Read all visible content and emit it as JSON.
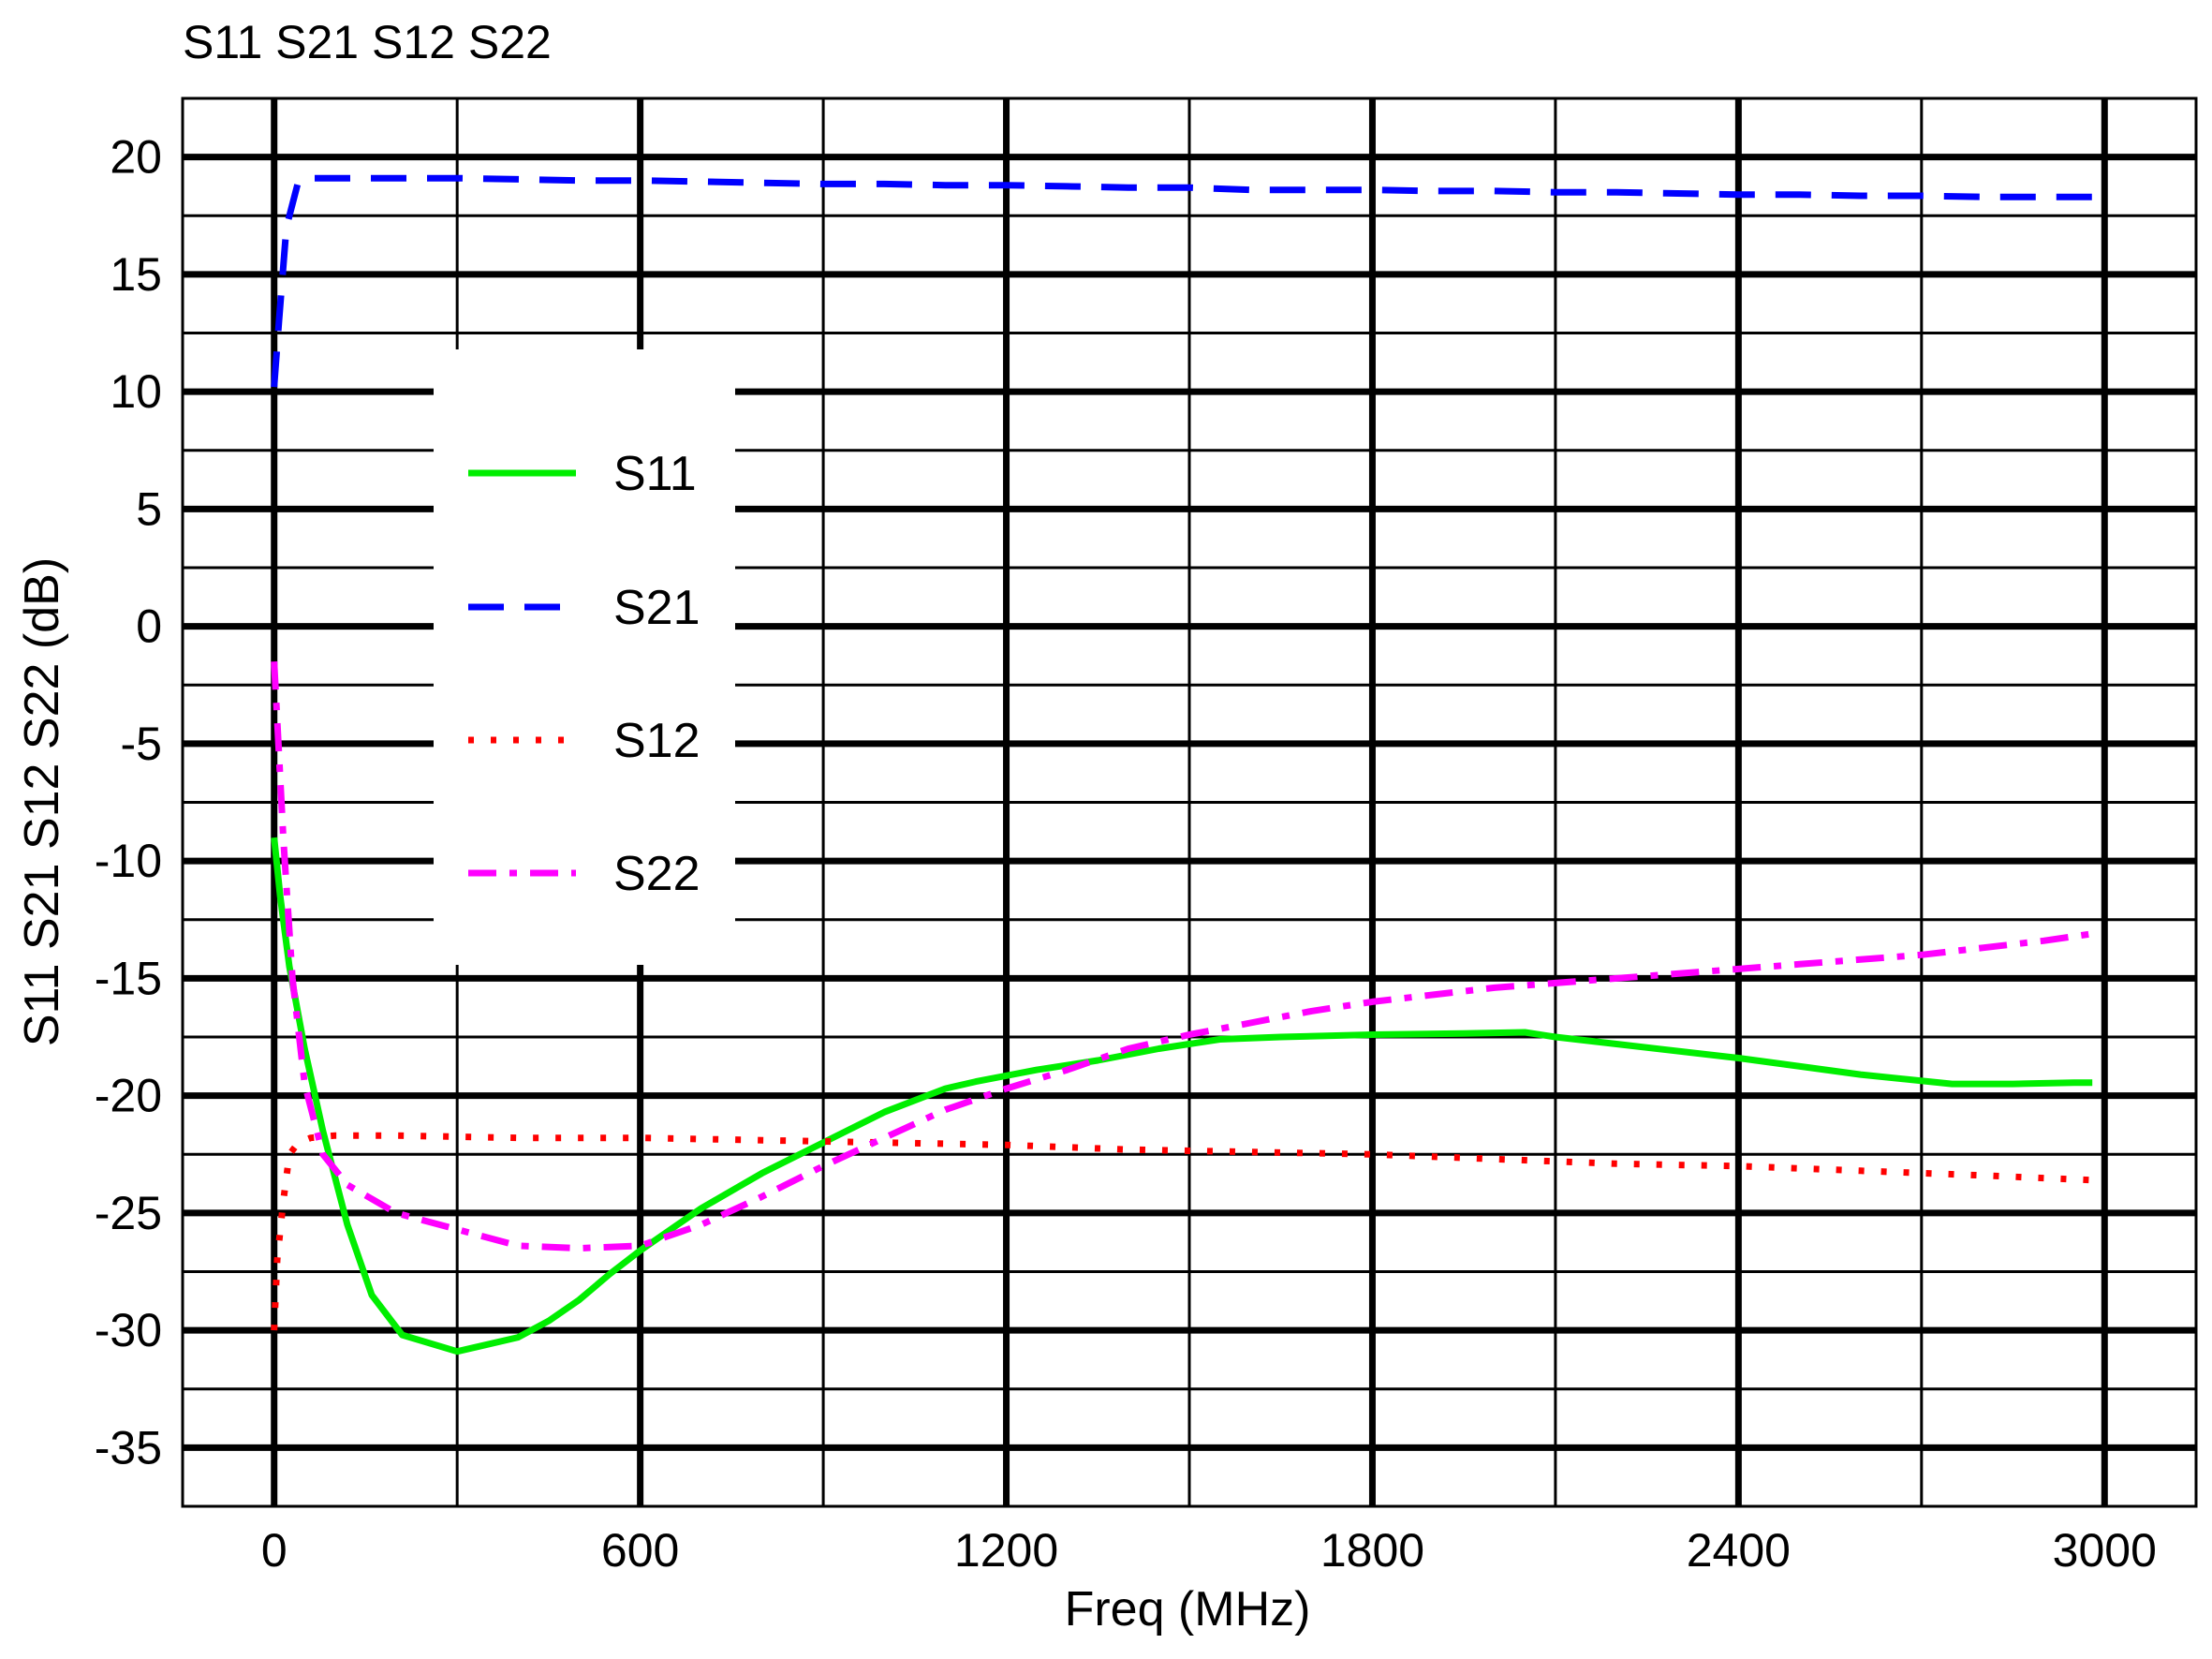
{
  "chart_data": {
    "type": "line",
    "title": "S11 S21 S12 S22",
    "xlabel": "Freq (MHz)",
    "ylabel": "S11 S21 S12 S22  (dB)",
    "xlim": [
      -150,
      3150
    ],
    "ylim": [
      -37.5,
      22.5
    ],
    "xticks": [
      0,
      600,
      1200,
      1800,
      2400,
      3000
    ],
    "xtick_labels": [
      "0",
      "600",
      "1200",
      "1800",
      "2400",
      "3000"
    ],
    "yticks": [
      20,
      15,
      10,
      5,
      0,
      -5,
      -10,
      -15,
      -20,
      -25,
      -30,
      -35
    ],
    "ytick_labels": [
      "20",
      "15",
      "10",
      "5",
      "0",
      "-5",
      "-10",
      "-15",
      "-20",
      "-25",
      "-30",
      "-35"
    ],
    "grid": true,
    "legend_position": "upper-left",
    "series": [
      {
        "name": "S11",
        "color": "#00ee00",
        "style": "solid",
        "x": [
          0,
          10,
          25,
          50,
          80,
          120,
          160,
          210,
          300,
          400,
          450,
          500,
          550,
          600,
          700,
          800,
          900,
          1000,
          1100,
          1150,
          1250,
          1350,
          1450,
          1550,
          1650,
          1800,
          1950,
          2050,
          2100,
          2200,
          2400,
          2600,
          2750,
          2850,
          2950,
          2980
        ],
        "y": [
          -9.0,
          -11.5,
          -14.5,
          -18.0,
          -21.5,
          -25.5,
          -28.5,
          -30.2,
          -30.9,
          -30.3,
          -29.6,
          -28.7,
          -27.6,
          -26.6,
          -24.8,
          -23.3,
          -22.0,
          -20.7,
          -19.7,
          -19.4,
          -18.9,
          -18.5,
          -18.0,
          -17.6,
          -17.5,
          -17.4,
          -17.35,
          -17.3,
          -17.5,
          -17.8,
          -18.4,
          -19.1,
          -19.5,
          -19.5,
          -19.45,
          -19.45
        ]
      },
      {
        "name": "S21",
        "color": "#0000ff",
        "style": "dashed",
        "x": [
          0,
          8,
          20,
          40,
          60,
          100,
          200,
          300,
          400,
          500,
          600,
          700,
          800,
          900,
          1000,
          1100,
          1200,
          1300,
          1400,
          1500,
          1600,
          1700,
          1800,
          1900,
          2000,
          2100,
          2200,
          2300,
          2400,
          2500,
          2600,
          2700,
          2800,
          2900,
          2980
        ],
        "y": [
          10.2,
          13.0,
          17.0,
          19.0,
          19.1,
          19.1,
          19.1,
          19.1,
          19.05,
          19.0,
          19.0,
          18.95,
          18.9,
          18.85,
          18.85,
          18.8,
          18.8,
          18.75,
          18.7,
          18.7,
          18.6,
          18.6,
          18.6,
          18.55,
          18.55,
          18.5,
          18.5,
          18.45,
          18.4,
          18.4,
          18.35,
          18.35,
          18.3,
          18.3,
          18.3
        ]
      },
      {
        "name": "S12",
        "color": "#ff0000",
        "style": "dotted",
        "x": [
          0,
          5,
          15,
          25,
          40,
          60,
          100,
          200,
          400,
          600,
          800,
          1000,
          1200,
          1400,
          1600,
          1800,
          2000,
          2200,
          2400,
          2600,
          2800,
          2980
        ],
        "y": [
          -30.0,
          -27.0,
          -24.5,
          -22.5,
          -22.0,
          -21.8,
          -21.7,
          -21.7,
          -21.8,
          -21.8,
          -21.9,
          -22.0,
          -22.1,
          -22.3,
          -22.4,
          -22.5,
          -22.7,
          -22.9,
          -23.0,
          -23.2,
          -23.4,
          -23.6
        ]
      },
      {
        "name": "S22",
        "color": "#ff00ff",
        "style": "dashdot",
        "x": [
          0,
          5,
          15,
          30,
          50,
          80,
          120,
          200,
          300,
          400,
          500,
          600,
          700,
          800,
          900,
          1000,
          1100,
          1200,
          1300,
          1400,
          1500,
          1600,
          1700,
          1800,
          1900,
          2000,
          2100,
          2200,
          2300,
          2400,
          2500,
          2600,
          2700,
          2800,
          2900,
          2980
        ],
        "y": [
          -1.5,
          -4.0,
          -9.0,
          -15.0,
          -19.5,
          -22.5,
          -23.8,
          -25.0,
          -25.7,
          -26.4,
          -26.5,
          -26.4,
          -25.5,
          -24.3,
          -23.0,
          -21.8,
          -20.6,
          -19.7,
          -18.9,
          -18.0,
          -17.4,
          -16.9,
          -16.4,
          -16.0,
          -15.7,
          -15.4,
          -15.2,
          -15.0,
          -14.8,
          -14.6,
          -14.4,
          -14.2,
          -14.0,
          -13.7,
          -13.4,
          -13.1
        ]
      }
    ]
  }
}
